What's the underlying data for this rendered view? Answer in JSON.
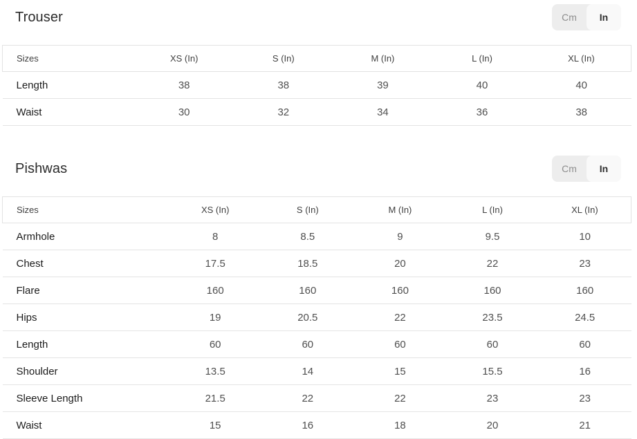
{
  "colors": {
    "toggle_track": "#ededed",
    "toggle_active_bg": "#f9f9f9",
    "toggle_inactive_text": "#8d8d8d",
    "toggle_active_text": "#2f2f2f",
    "table_border": "#e2e2e2",
    "row_divider": "#e4e4e4",
    "title_text": "#2b2b2b",
    "label_text": "#1c1c1c",
    "value_text": "#4f4f4f"
  },
  "sections": [
    {
      "title": "Trouser",
      "unit_toggle": {
        "options": [
          "Cm",
          "In"
        ],
        "selected": "In"
      },
      "table": {
        "columns": [
          "Sizes",
          "XS (In)",
          "S (In)",
          "M (In)",
          "L (In)",
          "XL (In)"
        ],
        "rows": [
          {
            "label": "Length",
            "values": [
              "38",
              "38",
              "39",
              "40",
              "40"
            ]
          },
          {
            "label": "Waist",
            "values": [
              "30",
              "32",
              "34",
              "36",
              "38"
            ]
          }
        ]
      }
    },
    {
      "title": "Pishwas",
      "unit_toggle": {
        "options": [
          "Cm",
          "In"
        ],
        "selected": "In"
      },
      "table": {
        "columns": [
          "Sizes",
          "XS (In)",
          "S (In)",
          "M (In)",
          "L (In)",
          "XL (In)"
        ],
        "rows": [
          {
            "label": "Armhole",
            "values": [
              "8",
              "8.5",
              "9",
              "9.5",
              "10"
            ]
          },
          {
            "label": "Chest",
            "values": [
              "17.5",
              "18.5",
              "20",
              "22",
              "23"
            ]
          },
          {
            "label": "Flare",
            "values": [
              "160",
              "160",
              "160",
              "160",
              "160"
            ]
          },
          {
            "label": "Hips",
            "values": [
              "19",
              "20.5",
              "22",
              "23.5",
              "24.5"
            ]
          },
          {
            "label": "Length",
            "values": [
              "60",
              "60",
              "60",
              "60",
              "60"
            ]
          },
          {
            "label": "Shoulder",
            "values": [
              "13.5",
              "14",
              "15",
              "15.5",
              "16"
            ]
          },
          {
            "label": "Sleeve Length",
            "values": [
              "21.5",
              "22",
              "22",
              "23",
              "23"
            ]
          },
          {
            "label": "Waist",
            "values": [
              "15",
              "16",
              "18",
              "20",
              "21"
            ]
          }
        ]
      }
    }
  ]
}
